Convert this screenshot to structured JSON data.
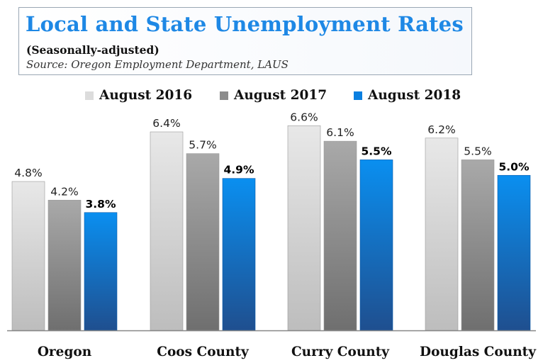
{
  "header": {
    "title": "Local and State Unemployment Rates",
    "subtitle": "(Seasonally-adjusted)",
    "source": "Source: Oregon Employment Department, LAUS"
  },
  "chart_data": {
    "type": "bar",
    "title": "Local and State Unemployment Rates",
    "subtitle": "(Seasonally-adjusted)",
    "categories": [
      "Oregon",
      "Coos County",
      "Curry County",
      "Douglas County"
    ],
    "series": [
      {
        "name": "August 2016",
        "values": [
          4.8,
          6.4,
          6.6,
          6.2
        ],
        "labels": [
          "4.8%",
          "6.4%",
          "6.6%",
          "6.2%"
        ],
        "color_top": "#e8e8e8",
        "color_bottom": "#bdbdbd",
        "label_bold": false
      },
      {
        "name": "August 2017",
        "values": [
          4.2,
          5.7,
          6.1,
          5.5
        ],
        "labels": [
          "4.2%",
          "5.7%",
          "6.1%",
          "5.5%"
        ],
        "color_top": "#a9a9a9",
        "color_bottom": "#6f6f6f",
        "label_bold": false
      },
      {
        "name": "August 2018",
        "values": [
          3.8,
          4.9,
          5.5,
          5.0
        ],
        "labels": [
          "3.8%",
          "4.9%",
          "5.5%",
          "5.0%"
        ],
        "color_top": "#0a8ff0",
        "color_bottom": "#1f4f8f",
        "label_bold": true
      }
    ],
    "ylim": [
      0,
      7
    ],
    "legend_position": "top",
    "grid": false
  }
}
